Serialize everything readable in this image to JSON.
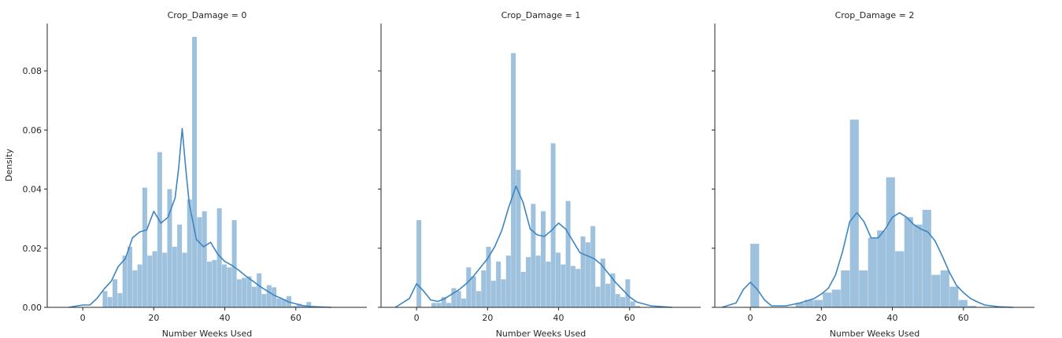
{
  "figure": {
    "ylabel": "Density",
    "xlabel": "Number Weeks Used",
    "y_ticks": [
      0.0,
      0.02,
      0.04,
      0.06,
      0.08
    ],
    "y_tick_labels": [
      "0.00",
      "0.02",
      "0.04",
      "0.06",
      "0.08"
    ],
    "x_ticks": [
      0,
      20,
      40,
      60
    ],
    "x_tick_labels": [
      "0",
      "20",
      "40",
      "60"
    ],
    "xlim": [
      -10,
      80
    ],
    "ylim": [
      0,
      0.096
    ],
    "bar_color": "#9ec1dd",
    "line_color": "#3d85c2"
  },
  "chart_data": [
    {
      "type": "bar",
      "title": "Crop_Damage = 0",
      "xlabel": "Number Weeks Used",
      "ylabel": "Density",
      "bins": {
        "edges_start": 0,
        "width": 1.4,
        "values": [
          0.0,
          0.0,
          0.0,
          0.0,
          0.0055,
          0.0035,
          0.0095,
          0.0048,
          0.0175,
          0.0205,
          0.0125,
          0.0145,
          0.0405,
          0.0175,
          0.019,
          0.0525,
          0.0185,
          0.04,
          0.0205,
          0.028,
          0.0185,
          0.0365,
          0.0915,
          0.0305,
          0.0325,
          0.0155,
          0.016,
          0.0335,
          0.0145,
          0.0135,
          0.0295,
          0.0095,
          0.01,
          0.0105,
          0.007,
          0.0115,
          0.0045,
          0.0075,
          0.0068,
          0.003,
          0.0028,
          0.0038,
          0.0005,
          0.0012,
          0.0005,
          0.0018,
          0.0003
        ]
      },
      "kde": {
        "x": [
          -4,
          0,
          2,
          4,
          6,
          8,
          10,
          12,
          14,
          16,
          18,
          20,
          22,
          24,
          26,
          27,
          28,
          29,
          30,
          32,
          34,
          36,
          38,
          40,
          42,
          44,
          46,
          48,
          50,
          52,
          54,
          56,
          58,
          60,
          62,
          64,
          66,
          70
        ],
        "y": [
          0.0,
          0.0008,
          0.0008,
          0.003,
          0.0062,
          0.0088,
          0.0138,
          0.0165,
          0.0235,
          0.0255,
          0.0262,
          0.0325,
          0.0285,
          0.0305,
          0.037,
          0.047,
          0.0605,
          0.047,
          0.035,
          0.023,
          0.0205,
          0.022,
          0.018,
          0.0155,
          0.0142,
          0.0125,
          0.0105,
          0.0088,
          0.007,
          0.0055,
          0.004,
          0.003,
          0.0018,
          0.0012,
          0.0006,
          0.0003,
          0.0002,
          0.0
        ]
      }
    },
    {
      "type": "bar",
      "title": "Crop_Damage = 1",
      "xlabel": "Number Weeks Used",
      "ylabel": "Density",
      "bins": {
        "edges_start": 0,
        "width": 1.4,
        "values": [
          0.0295,
          0.0,
          0.0,
          0.0015,
          0.0015,
          0.0035,
          0.0015,
          0.0065,
          0.0055,
          0.003,
          0.0135,
          0.0105,
          0.0055,
          0.0125,
          0.0205,
          0.009,
          0.0155,
          0.0095,
          0.0175,
          0.086,
          0.0465,
          0.012,
          0.017,
          0.035,
          0.0175,
          0.0325,
          0.0155,
          0.0555,
          0.0185,
          0.0145,
          0.036,
          0.014,
          0.013,
          0.024,
          0.022,
          0.0275,
          0.007,
          0.0165,
          0.008,
          0.0115,
          0.0045,
          0.0035,
          0.0095,
          0.002,
          0.0005
        ]
      },
      "kde": {
        "x": [
          -6,
          -2,
          0,
          2,
          4,
          6,
          8,
          10,
          12,
          14,
          16,
          18,
          20,
          22,
          24,
          26,
          28,
          30,
          32,
          34,
          36,
          38,
          40,
          42,
          44,
          46,
          48,
          50,
          52,
          54,
          56,
          58,
          60,
          62,
          66,
          72
        ],
        "y": [
          0.0,
          0.003,
          0.008,
          0.0055,
          0.0025,
          0.002,
          0.003,
          0.0045,
          0.006,
          0.008,
          0.0105,
          0.0135,
          0.0165,
          0.0205,
          0.026,
          0.034,
          0.041,
          0.0355,
          0.0265,
          0.0245,
          0.024,
          0.026,
          0.0285,
          0.0265,
          0.0225,
          0.0185,
          0.0175,
          0.0165,
          0.0145,
          0.0115,
          0.0085,
          0.006,
          0.0035,
          0.0018,
          0.0005,
          0.0
        ]
      }
    },
    {
      "type": "bar",
      "title": "Crop_Damage = 2",
      "xlabel": "Number Weeks Used",
      "ylabel": "Density",
      "bins": {
        "edges_start": 0,
        "width": 2.55,
        "values": [
          0.0215,
          0.0,
          0.0,
          0.0,
          0.0,
          0.0015,
          0.0025,
          0.0025,
          0.005,
          0.006,
          0.0125,
          0.0635,
          0.0125,
          0.0235,
          0.026,
          0.044,
          0.019,
          0.0305,
          0.028,
          0.033,
          0.011,
          0.0125,
          0.007,
          0.0025,
          0.0005
        ]
      },
      "kde": {
        "x": [
          -8,
          -4,
          -2,
          0,
          2,
          4,
          6,
          10,
          14,
          18,
          20,
          22,
          24,
          26,
          28,
          30,
          32,
          34,
          36,
          38,
          40,
          42,
          44,
          46,
          48,
          50,
          52,
          54,
          56,
          58,
          60,
          62,
          64,
          66,
          70,
          74
        ],
        "y": [
          0.0,
          0.0015,
          0.006,
          0.0085,
          0.006,
          0.0025,
          0.0005,
          0.0005,
          0.0015,
          0.003,
          0.0045,
          0.0065,
          0.011,
          0.019,
          0.029,
          0.032,
          0.029,
          0.0235,
          0.0235,
          0.0265,
          0.0305,
          0.032,
          0.0305,
          0.028,
          0.0265,
          0.0255,
          0.0225,
          0.0175,
          0.012,
          0.0075,
          0.005,
          0.003,
          0.0018,
          0.0008,
          0.0002,
          0.0
        ]
      }
    }
  ]
}
